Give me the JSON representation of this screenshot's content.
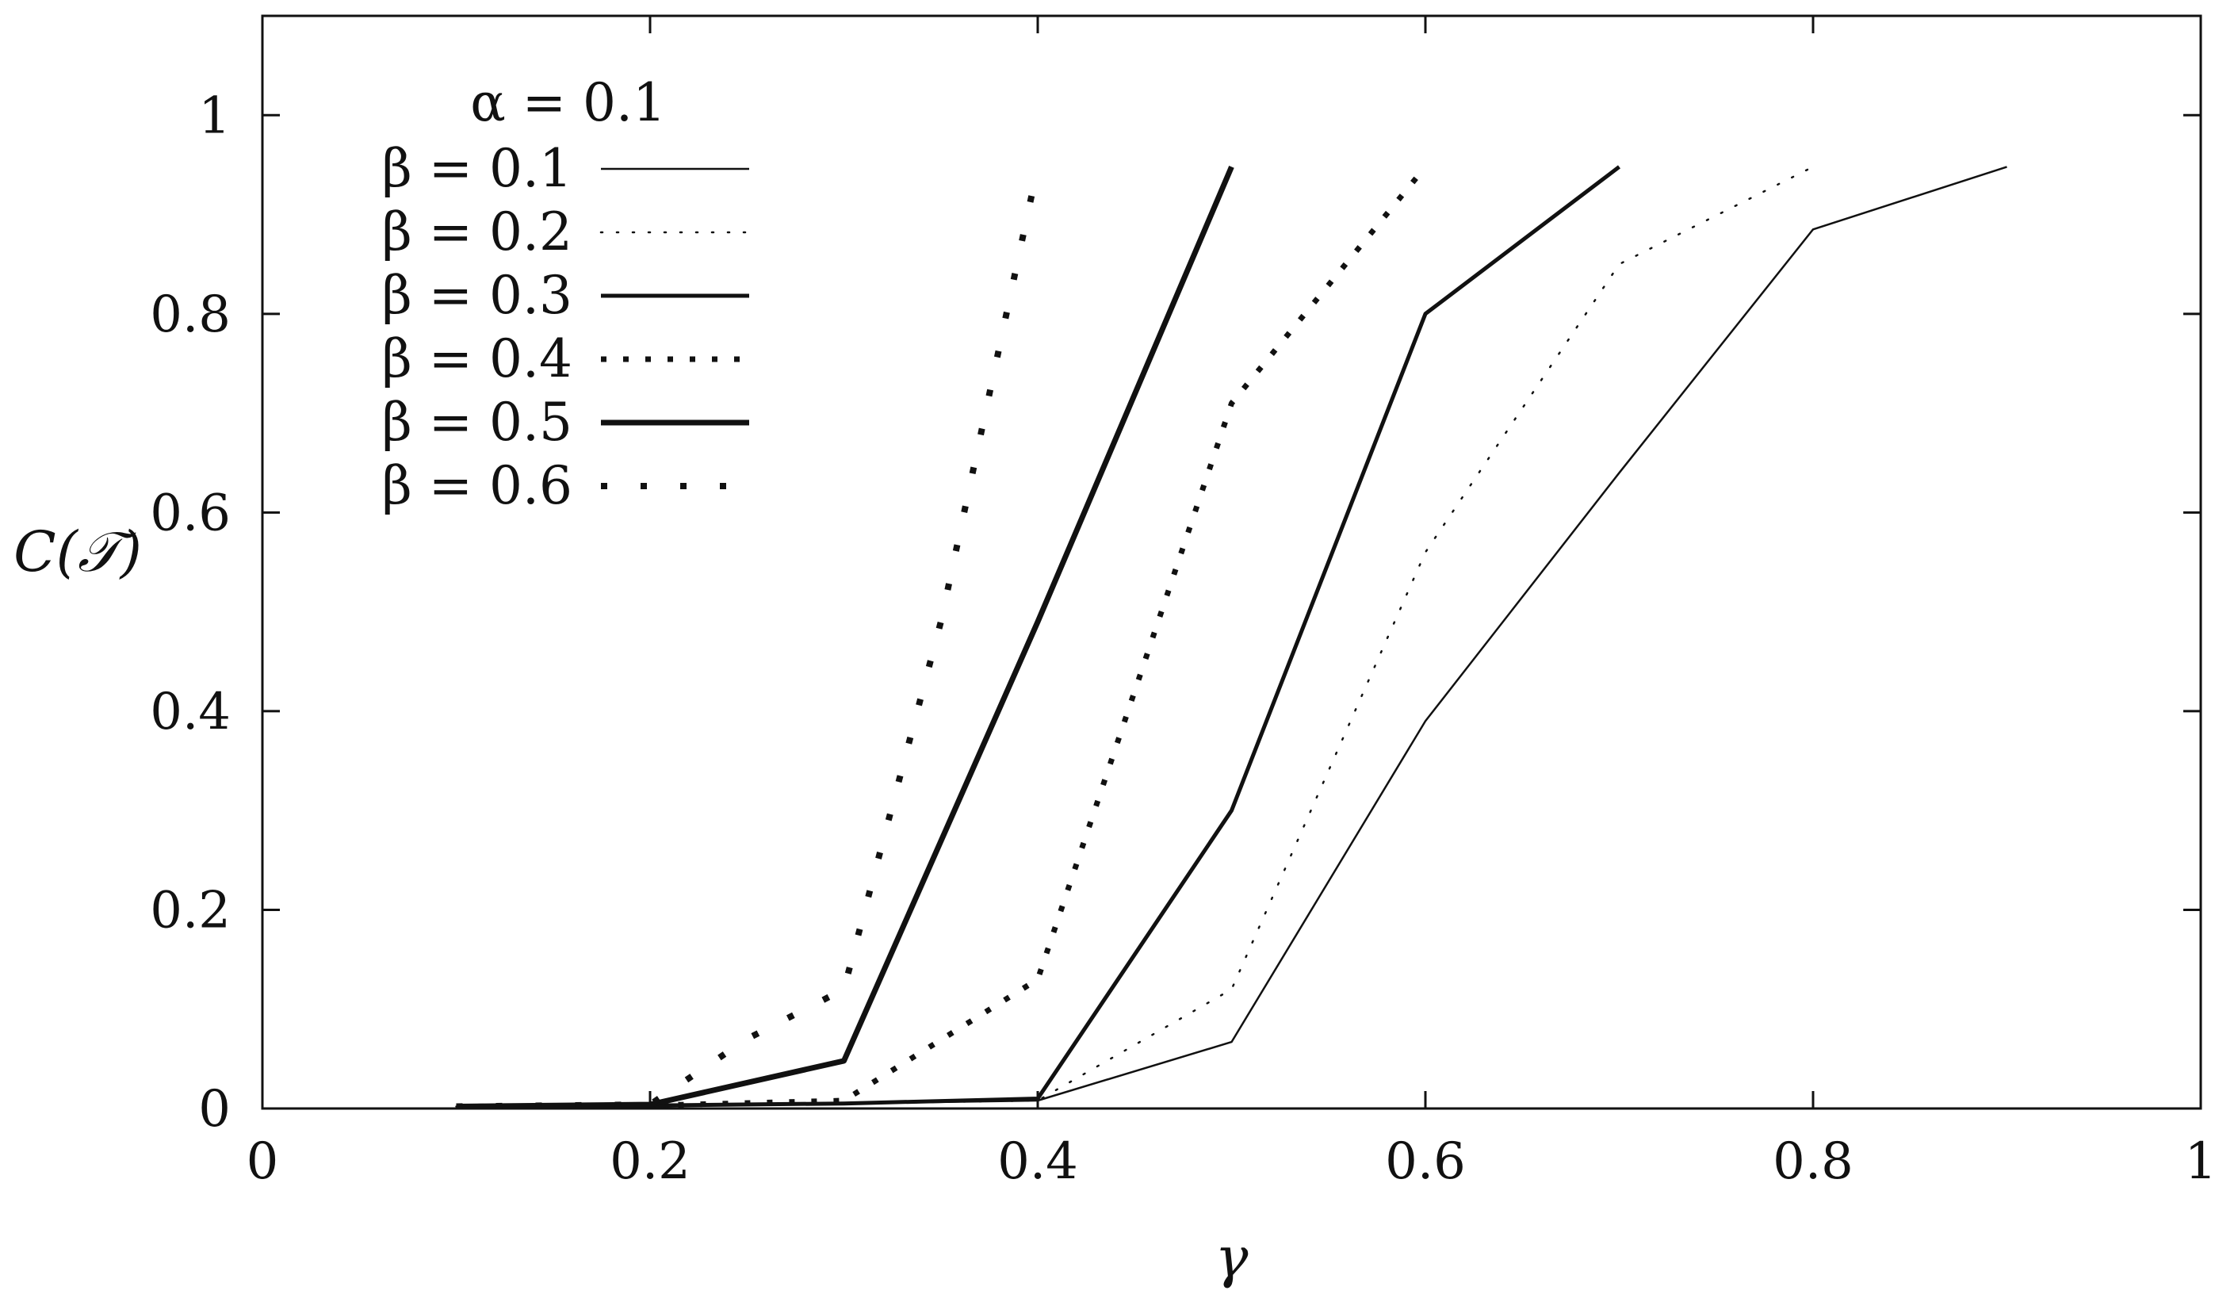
{
  "chart_data": {
    "type": "line",
    "title": "",
    "xlabel": "γ",
    "ylabel": "C(𝒯)",
    "xlim": [
      0,
      1
    ],
    "ylim": [
      0,
      1.1
    ],
    "x_ticks": [
      0,
      0.2,
      0.4,
      0.6,
      0.8,
      1
    ],
    "x_tick_labels": [
      "0",
      "0.2",
      "0.4",
      "0.6",
      "0.8",
      "1"
    ],
    "y_ticks": [
      0,
      0.2,
      0.4,
      0.6,
      0.8,
      1
    ],
    "y_tick_labels": [
      "0",
      "0.2",
      "0.4",
      "0.6",
      "0.8",
      "1"
    ],
    "grid": false,
    "legend_position": "top-left",
    "legend_title": "α = 0.1",
    "series": [
      {
        "name": "β = 0.1",
        "style": "thin-solid",
        "points": [
          [
            0.1,
            0.002
          ],
          [
            0.2,
            0.003
          ],
          [
            0.3,
            0.005
          ],
          [
            0.4,
            0.008
          ],
          [
            0.5,
            0.067
          ],
          [
            0.6,
            0.39
          ],
          [
            0.7,
            0.64
          ],
          [
            0.8,
            0.885
          ],
          [
            0.9,
            0.948
          ]
        ]
      },
      {
        "name": "β = 0.2",
        "style": "thin-dotted",
        "points": [
          [
            0.1,
            0.002
          ],
          [
            0.2,
            0.003
          ],
          [
            0.3,
            0.005
          ],
          [
            0.4,
            0.008
          ],
          [
            0.5,
            0.12
          ],
          [
            0.6,
            0.56
          ],
          [
            0.7,
            0.85
          ],
          [
            0.8,
            0.948
          ]
        ]
      },
      {
        "name": "β = 0.3",
        "style": "medium-solid",
        "points": [
          [
            0.1,
            0.002
          ],
          [
            0.2,
            0.003
          ],
          [
            0.3,
            0.005
          ],
          [
            0.4,
            0.01
          ],
          [
            0.5,
            0.3
          ],
          [
            0.6,
            0.8
          ],
          [
            0.7,
            0.948
          ]
        ]
      },
      {
        "name": "β = 0.4",
        "style": "medium-dotted",
        "points": [
          [
            0.1,
            0.002
          ],
          [
            0.2,
            0.003
          ],
          [
            0.3,
            0.008
          ],
          [
            0.4,
            0.13
          ],
          [
            0.5,
            0.71
          ],
          [
            0.6,
            0.948
          ]
        ]
      },
      {
        "name": "β = 0.5",
        "style": "thick-solid",
        "points": [
          [
            0.1,
            0.002
          ],
          [
            0.2,
            0.004
          ],
          [
            0.3,
            0.048
          ],
          [
            0.4,
            0.49
          ],
          [
            0.5,
            0.948
          ]
        ]
      },
      {
        "name": "β = 0.6",
        "style": "sparse-dotted",
        "points": [
          [
            0.1,
            0.002
          ],
          [
            0.2,
            0.004
          ],
          [
            0.25,
            0.07
          ],
          [
            0.3,
            0.12
          ],
          [
            0.35,
            0.49
          ],
          [
            0.4,
            0.948
          ]
        ]
      }
    ]
  }
}
